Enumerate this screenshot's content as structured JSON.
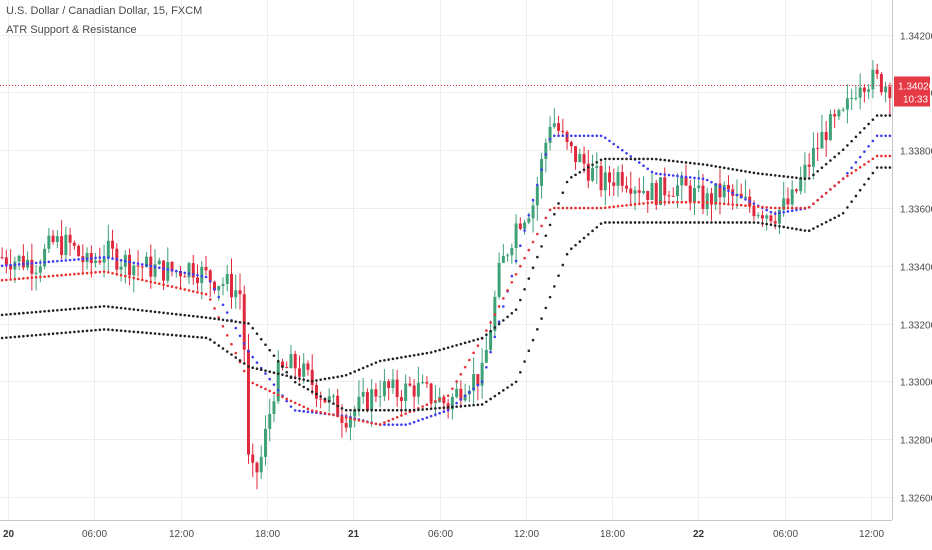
{
  "header": {
    "title": "U.S. Dollar / Canadian Dollar, 15, FXCM",
    "indicator": "ATR Support & Resistance"
  },
  "price_badge": {
    "value": "1.34026",
    "countdown": "10:33",
    "color": "#e53945"
  },
  "colors": {
    "up": "#3fa178",
    "down": "#e0283c",
    "blue_dots": "#3d3df0",
    "red_dots": "#e8302f",
    "black_dots": "#222222",
    "grid": "#eeeeee",
    "axis_text": "#4a4a4a",
    "price_line": "#e53945"
  },
  "chart_data": {
    "type": "line",
    "chart_kind": "candlestick",
    "ylim": [
      1.3252,
      1.3432
    ],
    "y_ticks": [
      "1.34200",
      "1.34000",
      "1.33800",
      "1.33600",
      "1.33400",
      "1.33200",
      "1.33000",
      "1.32800",
      "1.32600"
    ],
    "x_ticks": [
      "20",
      "06:00",
      "12:00",
      "18:00",
      "21",
      "06:00",
      "12:00",
      "18:00",
      "22",
      "06:00",
      "12:00"
    ],
    "x_ticks_bold": [
      true,
      false,
      false,
      false,
      true,
      false,
      false,
      false,
      true,
      false,
      false
    ],
    "bars_count": 210,
    "close_anchors": [
      [
        0,
        1.3343
      ],
      [
        10,
        1.3341
      ],
      [
        15,
        1.3348
      ],
      [
        20,
        1.3347
      ],
      [
        25,
        1.334
      ],
      [
        30,
        1.3345
      ],
      [
        35,
        1.3342
      ],
      [
        40,
        1.334
      ],
      [
        50,
        1.3338
      ],
      [
        55,
        1.334
      ],
      [
        60,
        1.3336
      ],
      [
        65,
        1.3334
      ],
      [
        70,
        1.333
      ],
      [
        72,
        1.3266
      ],
      [
        75,
        1.327
      ],
      [
        80,
        1.3302
      ],
      [
        85,
        1.3306
      ],
      [
        90,
        1.33
      ],
      [
        95,
        1.3293
      ],
      [
        100,
        1.3288
      ],
      [
        105,
        1.3292
      ],
      [
        110,
        1.3298
      ],
      [
        115,
        1.3296
      ],
      [
        120,
        1.3298
      ],
      [
        125,
        1.3295
      ],
      [
        130,
        1.3292
      ],
      [
        135,
        1.33
      ],
      [
        140,
        1.3302
      ],
      [
        145,
        1.3338
      ],
      [
        150,
        1.3355
      ],
      [
        155,
        1.3362
      ],
      [
        160,
        1.3392
      ],
      [
        165,
        1.338
      ],
      [
        170,
        1.3375
      ],
      [
        175,
        1.3368
      ],
      [
        180,
        1.3372
      ],
      [
        185,
        1.3368
      ],
      [
        190,
        1.3365
      ],
      [
        195,
        1.3368
      ],
      [
        200,
        1.3366
      ],
      [
        205,
        1.3362
      ],
      [
        210,
        1.3366
      ],
      [
        215,
        1.3362
      ],
      [
        220,
        1.336
      ],
      [
        225,
        1.3358
      ],
      [
        230,
        1.3362
      ],
      [
        235,
        1.3375
      ],
      [
        240,
        1.3387
      ],
      [
        245,
        1.3391
      ],
      [
        250,
        1.3405
      ],
      [
        255,
        1.3404
      ],
      [
        260,
        1.3402
      ]
    ],
    "series": [
      {
        "name": "",
        "color": "#3d3df0",
        "x": [
          0,
          30,
          60,
          72,
          85,
          100,
          110,
          118,
          130,
          140,
          160,
          175,
          190,
          205,
          225,
          235,
          245,
          255
        ],
        "values": [
          1.334,
          1.3343,
          1.3336,
          1.331,
          1.329,
          1.3288,
          1.3285,
          1.3285,
          1.329,
          1.33,
          1.3385,
          1.3385,
          1.3372,
          1.337,
          1.3358,
          1.336,
          1.337,
          1.3385
        ]
      },
      {
        "name": "",
        "color": "#e8302f",
        "x": [
          0,
          30,
          60,
          72,
          90,
          110,
          120,
          130,
          140,
          160,
          175,
          190,
          205,
          225,
          235,
          245,
          255
        ],
        "values": [
          1.3335,
          1.3338,
          1.333,
          1.33,
          1.329,
          1.3285,
          1.329,
          1.3295,
          1.3315,
          1.336,
          1.336,
          1.3362,
          1.3362,
          1.336,
          1.336,
          1.337,
          1.3378
        ]
      },
      {
        "name": "",
        "color": "#222222",
        "x": [
          0,
          30,
          60,
          72,
          85,
          100,
          120,
          140,
          150,
          165,
          175,
          190,
          205,
          220,
          235,
          245,
          255
        ],
        "values": [
          1.3323,
          1.3326,
          1.3322,
          1.332,
          1.33,
          1.329,
          1.329,
          1.3292,
          1.33,
          1.3345,
          1.3355,
          1.3355,
          1.3355,
          1.3355,
          1.3352,
          1.3358,
          1.3374
        ]
      },
      {
        "name": "",
        "color": "#222222",
        "x": [
          0,
          30,
          60,
          72,
          90,
          100,
          110,
          125,
          140,
          150,
          165,
          175,
          190,
          205,
          220,
          235,
          245,
          255
        ],
        "values": [
          1.3315,
          1.3318,
          1.3315,
          1.3305,
          1.33,
          1.3302,
          1.3307,
          1.331,
          1.3315,
          1.3325,
          1.337,
          1.3377,
          1.3377,
          1.3375,
          1.3372,
          1.337,
          1.338,
          1.3392
        ]
      }
    ]
  }
}
